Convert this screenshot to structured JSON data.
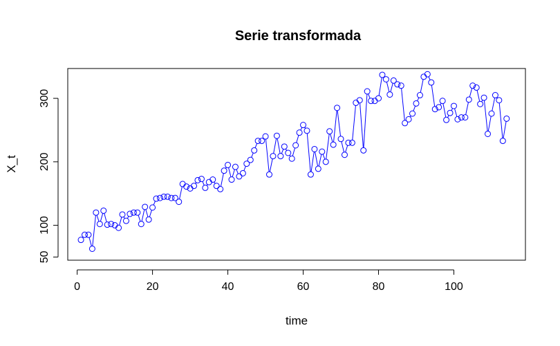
{
  "chart_data": {
    "type": "line",
    "title": "Serie transformada",
    "xlabel": "time",
    "ylabel": "X_t",
    "xlim": [
      -2.5,
      119
    ],
    "ylim": [
      45,
      347
    ],
    "xticks": [
      0,
      20,
      40,
      60,
      80,
      100
    ],
    "yticks": [
      50,
      100,
      200,
      300
    ],
    "grid": false,
    "line_color": "#0000ff",
    "marker": "open-circle",
    "series": [
      {
        "x": [
          1,
          2,
          3,
          4,
          5,
          6,
          7,
          8,
          9,
          10,
          11,
          12,
          13,
          14,
          15,
          16,
          17,
          18,
          19,
          20,
          21,
          22,
          23,
          24,
          25,
          26,
          27,
          28,
          29,
          30,
          31,
          32,
          33,
          34,
          35,
          36,
          37,
          38,
          39,
          40,
          41,
          42,
          43,
          44,
          45,
          46,
          47,
          48,
          49,
          50,
          51,
          52,
          53,
          54,
          55,
          56,
          57,
          58,
          59,
          60,
          61,
          62,
          63,
          64,
          65,
          66,
          67,
          68,
          69,
          70,
          71,
          72,
          73,
          74,
          75,
          76,
          77,
          78,
          79,
          80,
          81,
          82,
          83,
          84,
          85,
          86,
          87,
          88,
          89,
          90,
          91,
          92,
          93,
          94,
          95,
          96,
          97,
          98,
          99,
          100,
          101,
          102,
          103,
          104,
          105,
          106,
          107,
          108,
          109,
          110,
          111,
          112,
          113,
          114
        ],
        "values": [
          77,
          85,
          85,
          63,
          120,
          102,
          123,
          101,
          102,
          100,
          96,
          117,
          107,
          118,
          120,
          120,
          102,
          129,
          109,
          128,
          142,
          143,
          145,
          145,
          143,
          143,
          137,
          165,
          161,
          158,
          162,
          171,
          173,
          159,
          168,
          172,
          162,
          157,
          186,
          195,
          172,
          192,
          177,
          182,
          197,
          203,
          218,
          233,
          233,
          240,
          180,
          209,
          241,
          209,
          224,
          214,
          205,
          226,
          246,
          258,
          249,
          180,
          220,
          189,
          216,
          200,
          248,
          227,
          285,
          236,
          211,
          230,
          230,
          293,
          297,
          218,
          311,
          296,
          296,
          300,
          337,
          330,
          306,
          328,
          322,
          320,
          261,
          267,
          276,
          292,
          305,
          334,
          338,
          325,
          283,
          286,
          296,
          266,
          277,
          288,
          267,
          270,
          270,
          298,
          320,
          317,
          291,
          301,
          244,
          276,
          305,
          297,
          233,
          268
        ]
      }
    ]
  }
}
